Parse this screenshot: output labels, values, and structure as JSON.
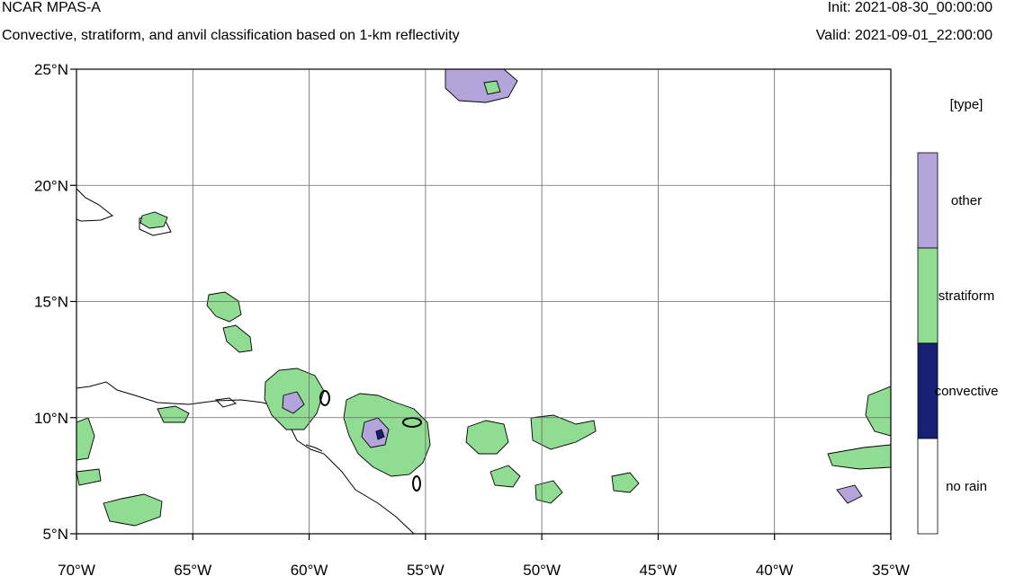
{
  "header": {
    "title": "NCAR MPAS-A",
    "subtitle": "Convective, stratiform, and anvil classification based on 1-km reflectivity",
    "init": "Init: 2021-08-30_00:00:00",
    "valid": "Valid: 2021-09-01_22:00:00"
  },
  "map": {
    "lon_range": [
      -70,
      -35
    ],
    "lat_range": [
      5,
      25
    ],
    "x_ticks": [
      {
        "value": -70,
        "label": "70°W"
      },
      {
        "value": -65,
        "label": "65°W"
      },
      {
        "value": -60,
        "label": "60°W"
      },
      {
        "value": -55,
        "label": "55°W"
      },
      {
        "value": -50,
        "label": "50°W"
      },
      {
        "value": -45,
        "label": "45°W"
      },
      {
        "value": -40,
        "label": "40°W"
      },
      {
        "value": -35,
        "label": "35°W"
      }
    ],
    "y_ticks": [
      {
        "value": 5,
        "label": "5°N"
      },
      {
        "value": 10,
        "label": "10°N"
      },
      {
        "value": 15,
        "label": "15°N"
      },
      {
        "value": 20,
        "label": "20°N"
      },
      {
        "value": 25,
        "label": "25°N"
      }
    ],
    "grid": true,
    "grid_spacing_deg": 5
  },
  "legend": {
    "title": "[type]",
    "items": [
      {
        "label": "other",
        "color": "#b3a4db"
      },
      {
        "label": "stratiform",
        "color": "#8fdc92"
      },
      {
        "label": "convective",
        "color": "#162074"
      },
      {
        "label": "no rain",
        "color": "#ffffff"
      }
    ]
  }
}
